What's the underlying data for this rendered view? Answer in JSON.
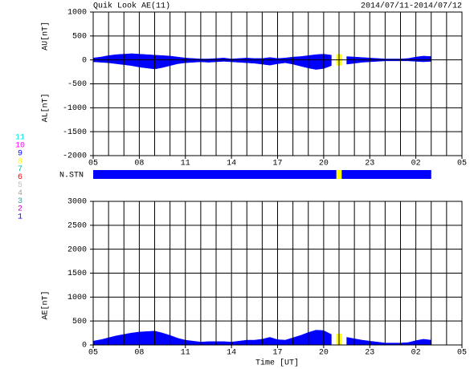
{
  "chart_data": [
    {
      "type": "area",
      "title": "Quik Look AE(11)",
      "subtitle": "2014/07/11-2014/07/12",
      "x": [
        5,
        5.5,
        6,
        6.5,
        7,
        7.5,
        8,
        8.5,
        9,
        9.5,
        10,
        10.5,
        11,
        11.5,
        12,
        12.5,
        13,
        13.5,
        14,
        14.5,
        15,
        15.5,
        16,
        16.5,
        17,
        17.5,
        18,
        18.5,
        19,
        19.5,
        20,
        20.5,
        21,
        21.5,
        22,
        22.5,
        23,
        23.5,
        24,
        24.5,
        25,
        25.5,
        26,
        26.5,
        27
      ],
      "xlim": [
        5,
        29
      ],
      "xticks": [
        {
          "value": 5,
          "label": "05"
        },
        {
          "value": 8,
          "label": "08"
        },
        11,
        14,
        17,
        20,
        23,
        {
          "value": 26,
          "label": "02"
        },
        {
          "value": 29,
          "label": "05"
        }
      ],
      "xgrid": [
        5,
        6,
        7,
        8,
        9,
        10,
        11,
        12,
        13,
        14,
        15,
        16,
        17,
        18,
        19,
        20,
        21,
        22,
        23,
        24,
        25,
        26,
        27,
        28,
        29
      ],
      "ylim": [
        -2000,
        1000
      ],
      "yticks": [
        -2000,
        -1500,
        -1000,
        -500,
        0,
        500,
        1000
      ],
      "grid": true,
      "gap_color": "#ffff00",
      "series": [
        {
          "name": "AU[nT]",
          "color": "#0000ff",
          "values": [
            40,
            60,
            90,
            110,
            120,
            130,
            120,
            110,
            100,
            90,
            80,
            60,
            40,
            30,
            20,
            20,
            30,
            40,
            20,
            30,
            40,
            30,
            30,
            50,
            30,
            40,
            60,
            70,
            90,
            110,
            120,
            100,
            null,
            70,
            60,
            50,
            40,
            30,
            20,
            20,
            20,
            30,
            60,
            80,
            70
          ]
        },
        {
          "name": "AL[nT]",
          "color": "#0000ff",
          "values": [
            -40,
            -50,
            -60,
            -80,
            -100,
            -120,
            -150,
            -170,
            -190,
            -160,
            -120,
            -80,
            -60,
            -50,
            -40,
            -50,
            -40,
            -30,
            -40,
            -50,
            -60,
            -70,
            -90,
            -110,
            -80,
            -60,
            -90,
            -130,
            -170,
            -200,
            -180,
            -120,
            null,
            -90,
            -70,
            -50,
            -40,
            -30,
            -20,
            -20,
            -20,
            -20,
            -30,
            -40,
            -30
          ]
        }
      ]
    },
    {
      "type": "area",
      "x_label": "Time [UT]",
      "x": [
        5,
        5.5,
        6,
        6.5,
        7,
        7.5,
        8,
        8.5,
        9,
        9.5,
        10,
        10.5,
        11,
        11.5,
        12,
        12.5,
        13,
        13.5,
        14,
        14.5,
        15,
        15.5,
        16,
        16.5,
        17,
        17.5,
        18,
        18.5,
        19,
        19.5,
        20,
        20.5,
        21,
        21.5,
        22,
        22.5,
        23,
        23.5,
        24,
        24.5,
        25,
        25.5,
        26,
        26.5,
        27
      ],
      "xlim": [
        5,
        29
      ],
      "xticks": [
        {
          "value": 5,
          "label": "05"
        },
        {
          "value": 8,
          "label": "08"
        },
        11,
        14,
        17,
        20,
        23,
        {
          "value": 26,
          "label": "02"
        },
        {
          "value": 29,
          "label": "05"
        }
      ],
      "xgrid": [
        5,
        6,
        7,
        8,
        9,
        10,
        11,
        12,
        13,
        14,
        15,
        16,
        17,
        18,
        19,
        20,
        21,
        22,
        23,
        24,
        25,
        26,
        27,
        28,
        29
      ],
      "ylim": [
        0,
        3000
      ],
      "yticks": [
        0,
        500,
        1000,
        1500,
        2000,
        2500,
        3000
      ],
      "grid": true,
      "gap_color": "#ffff00",
      "series": [
        {
          "name": "AE[nT]",
          "color": "#0000ff",
          "values": [
            80,
            110,
            150,
            190,
            220,
            250,
            270,
            280,
            290,
            250,
            200,
            140,
            100,
            80,
            60,
            70,
            70,
            70,
            60,
            80,
            100,
            100,
            120,
            160,
            110,
            100,
            150,
            200,
            260,
            310,
            300,
            220,
            null,
            160,
            130,
            100,
            80,
            60,
            40,
            40,
            40,
            50,
            90,
            120,
            100
          ]
        }
      ]
    }
  ],
  "station_bar": {
    "label": "N.STN",
    "color": "#0000ff",
    "gap_color": "#ffff00"
  },
  "station_legend": {
    "labels": [
      "11",
      "10",
      "9",
      "8",
      "7",
      "6",
      "5",
      "4",
      "3",
      "2",
      "1"
    ],
    "colors": [
      "#00e0e0",
      "#ff00ff",
      "#0000ff",
      "#ffff00",
      "#00c0a0",
      "#ff0000",
      "#c0c0c0",
      "#a0a0a0",
      "#40a0a0",
      "#c000c0",
      "#0000ff"
    ]
  }
}
